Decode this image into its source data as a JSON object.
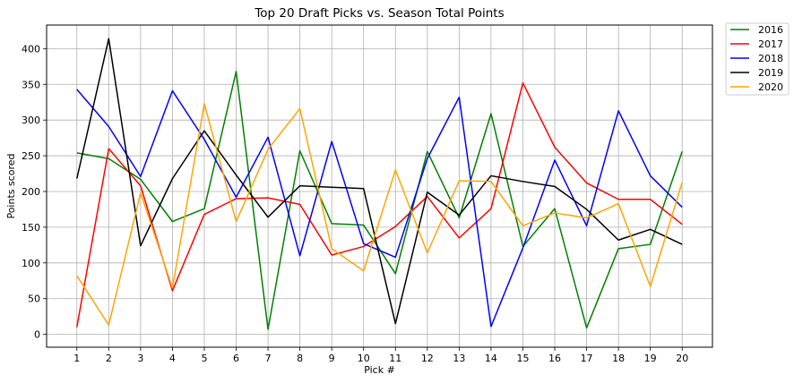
{
  "chart_data": {
    "type": "line",
    "title": "Top 20 Draft Picks vs. Season Total Points",
    "xlabel": "Pick #",
    "ylabel": "Points scored",
    "x": [
      1,
      2,
      3,
      4,
      5,
      6,
      7,
      8,
      9,
      10,
      11,
      12,
      13,
      14,
      15,
      16,
      17,
      18,
      19,
      20
    ],
    "ylim": [
      -18,
      433
    ],
    "yticks": [
      0,
      50,
      100,
      150,
      200,
      250,
      300,
      350,
      400
    ],
    "grid": true,
    "legend_position": "outside-top-right",
    "series": [
      {
        "name": "2016",
        "color": "#008000",
        "values": [
          254,
          246,
          217,
          158,
          176,
          368,
          7,
          257,
          155,
          153,
          85,
          256,
          163,
          309,
          123,
          176,
          9,
          120,
          126,
          256
        ]
      },
      {
        "name": "2017",
        "color": "#ff0000",
        "values": [
          10,
          260,
          208,
          61,
          168,
          190,
          191,
          182,
          111,
          123,
          151,
          193,
          135,
          176,
          352,
          262,
          212,
          189,
          189,
          154
        ]
      },
      {
        "name": "2018",
        "color": "#0000ff",
        "values": [
          343,
          291,
          221,
          341,
          273,
          192,
          276,
          110,
          270,
          127,
          108,
          246,
          332,
          11,
          121,
          244,
          152,
          313,
          222,
          178
        ]
      },
      {
        "name": "2019",
        "color": "#000000",
        "values": [
          218,
          414,
          124,
          218,
          285,
          223,
          164,
          208,
          206,
          204,
          15,
          199,
          167,
          222,
          214,
          207,
          175,
          132,
          147,
          126
        ]
      },
      {
        "name": "2020",
        "color": "#ffa500",
        "values": [
          82,
          13,
          198,
          65,
          323,
          158,
          259,
          316,
          120,
          89,
          230,
          114,
          215,
          214,
          152,
          170,
          163,
          183,
          67,
          213
        ]
      }
    ]
  }
}
